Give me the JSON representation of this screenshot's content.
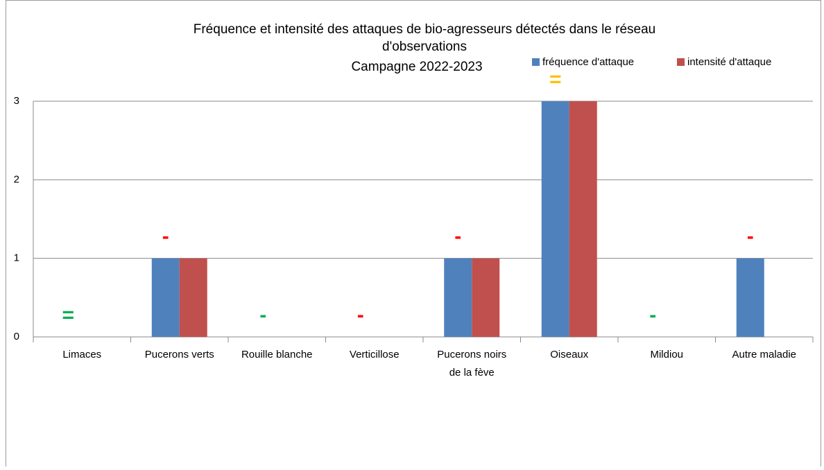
{
  "chart_data": {
    "type": "bar",
    "title": [
      "Fréquence et intensité des attaques de bio-agresseurs détectés dans le réseau",
      "d'observations",
      "Campagne 2022-2023"
    ],
    "categories": [
      [
        "Limaces"
      ],
      [
        "Pucerons verts"
      ],
      [
        "Rouille blanche"
      ],
      [
        "Verticillose"
      ],
      [
        "Pucerons noirs",
        "de la fève"
      ],
      [
        "Oiseaux"
      ],
      [
        "Mildiou"
      ],
      [
        "Autre maladie"
      ]
    ],
    "series": [
      {
        "name": "fréquence d'attaque",
        "color": "#4f81bd",
        "values": [
          0,
          1,
          0,
          0,
          1,
          3,
          0,
          1
        ]
      },
      {
        "name": "intensité d'attaque",
        "color": "#c0504d",
        "values": [
          0,
          1,
          0,
          0,
          1,
          3,
          0,
          0
        ]
      }
    ],
    "annotations": [
      "=",
      "-",
      "-",
      "-",
      "-",
      "=",
      "-",
      "-"
    ],
    "annotation_colors": [
      "#00b050",
      "#ff0000",
      "#00b050",
      "#ff0000",
      "#ff0000",
      "#ffc000",
      "#00b050",
      "#ff0000"
    ],
    "ylim": [
      0,
      3
    ],
    "yticks": [
      0,
      1,
      2,
      3
    ],
    "grid": true
  }
}
